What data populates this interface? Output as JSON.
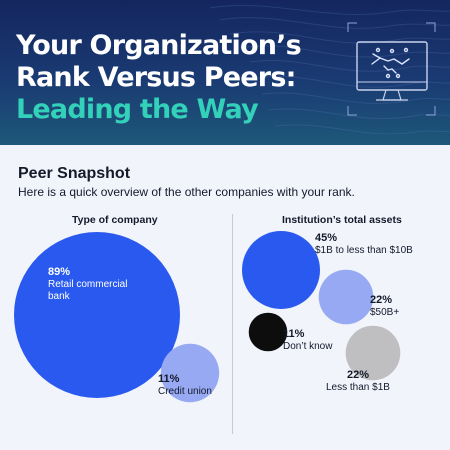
{
  "header": {
    "title_line1": "Your Organization’s",
    "title_line2": "Rank Versus Peers:",
    "title_line3": "Leading the Way",
    "icon": "monitor-handshake-icon"
  },
  "snapshot": {
    "title": "Peer Snapshot",
    "subtitle": "Here is a quick overview of the other companies with your rank."
  },
  "colors": {
    "brand_blue": "#2a59f0",
    "light_blue": "#97a9f2",
    "black": "#0d0d0d",
    "gray": "#bfbfc1",
    "accent_teal": "#33d1b9",
    "header_navy": "#15265e"
  },
  "chart_data": [
    {
      "type": "bubble",
      "title": "Type of company",
      "items": [
        {
          "pct": "89%",
          "value": 89,
          "label": "Retail commercial bank",
          "color": "#2a59f0"
        },
        {
          "pct": "11%",
          "value": 11,
          "label": "Credit union",
          "color": "#97a9f2"
        }
      ]
    },
    {
      "type": "bubble",
      "title": "Institution’s total assets",
      "items": [
        {
          "pct": "45%",
          "value": 45,
          "label": "$1B to less than $10B",
          "color": "#2a59f0"
        },
        {
          "pct": "22%",
          "value": 22,
          "label": "$50B+",
          "color": "#97a9f2"
        },
        {
          "pct": "11%",
          "value": 11,
          "label": "Don’t know",
          "color": "#0d0d0d"
        },
        {
          "pct": "22%",
          "value": 22,
          "label": "Less than $1B",
          "color": "#bfbfc1"
        }
      ]
    }
  ]
}
